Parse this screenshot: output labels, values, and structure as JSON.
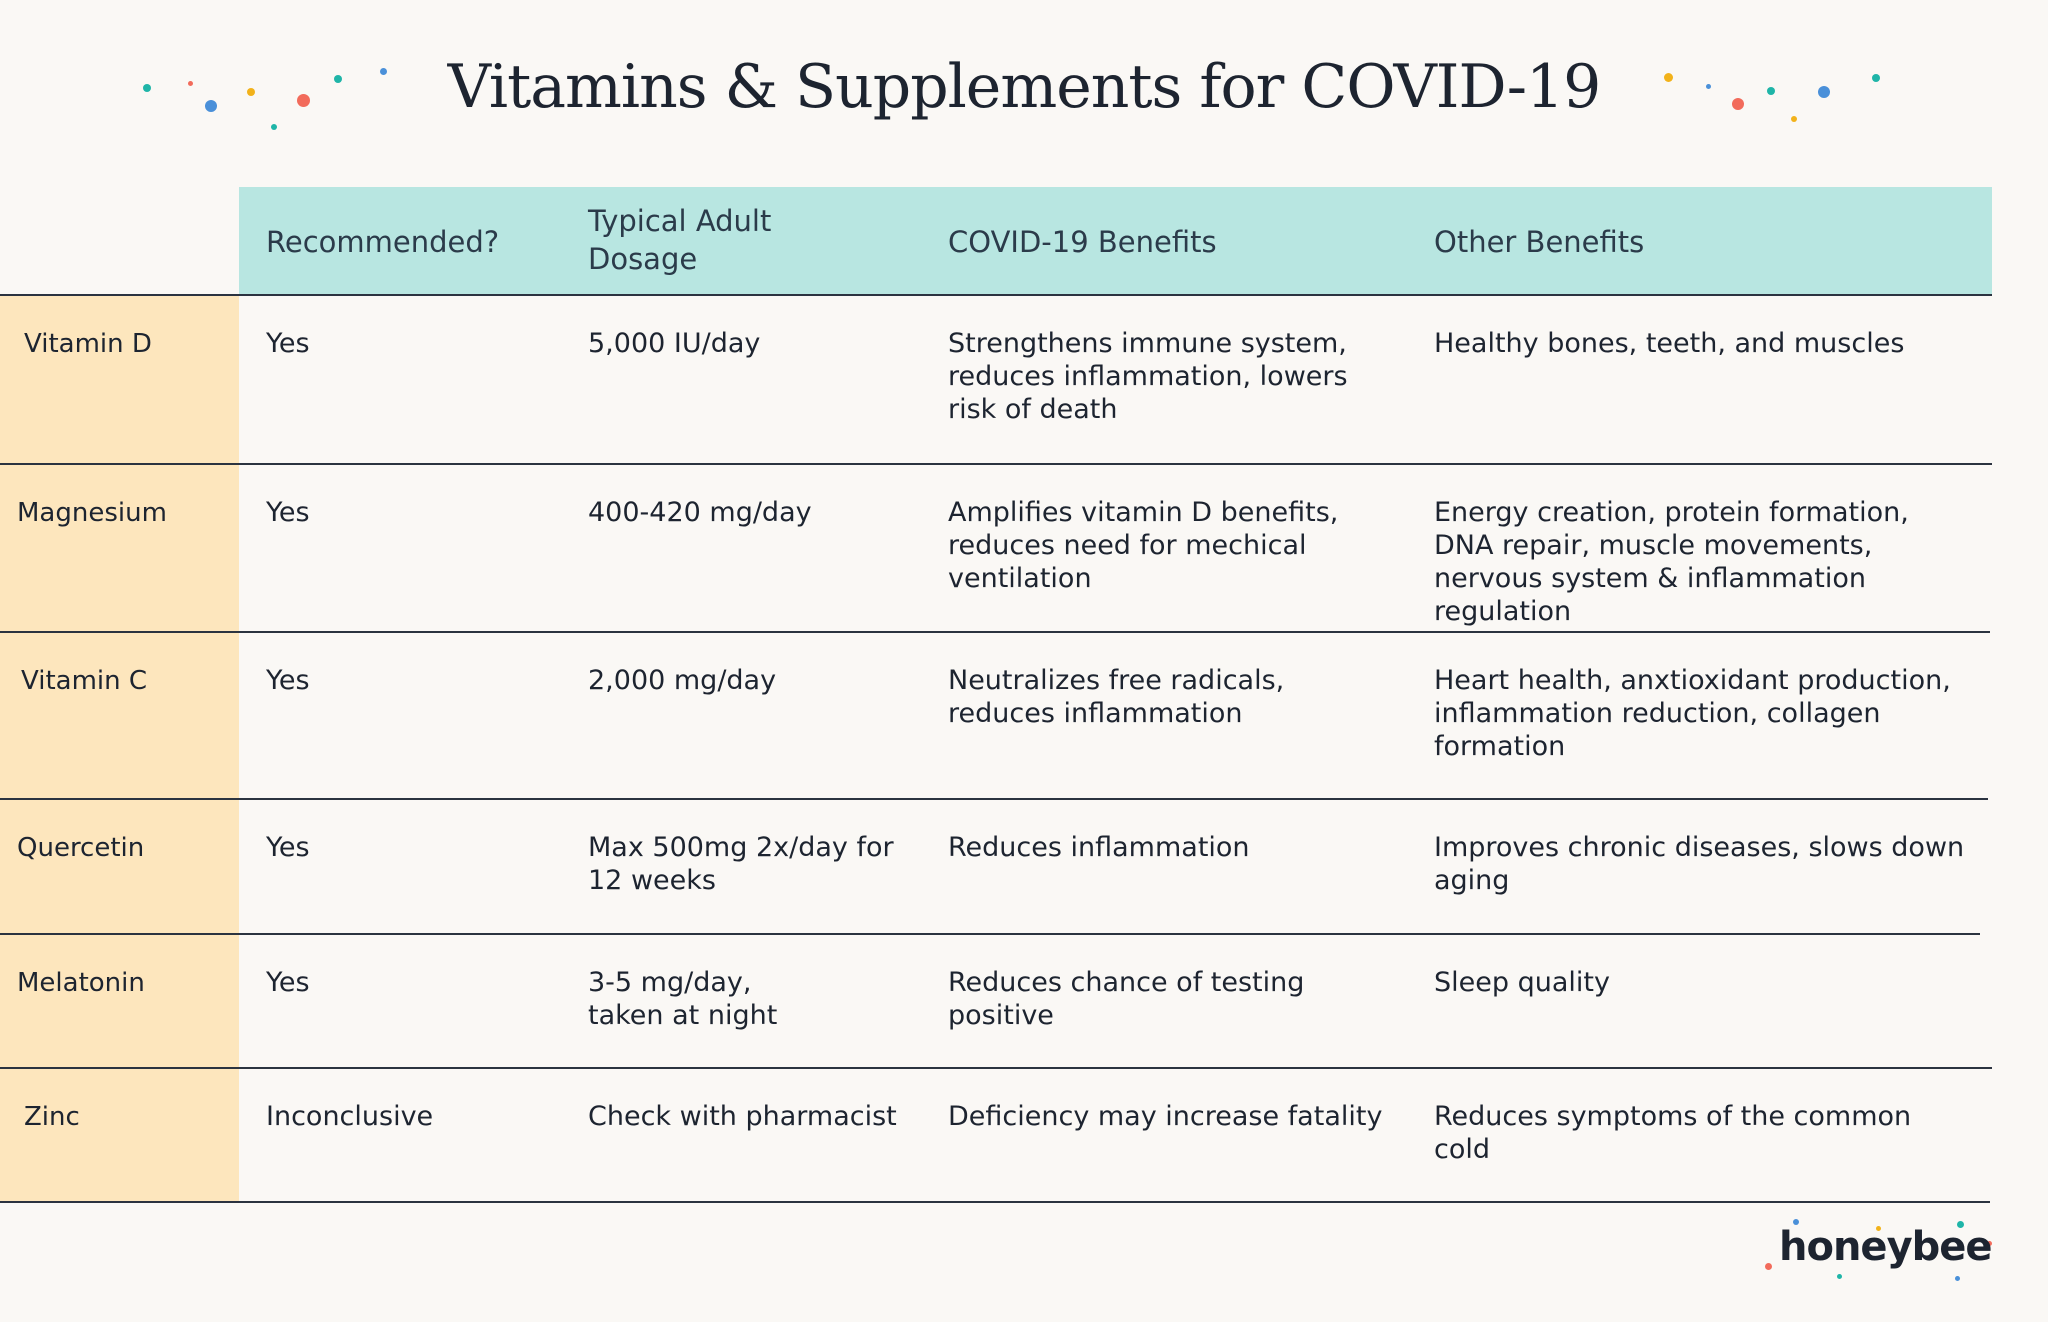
{
  "header": {
    "title": "Vitamins & Supplements for COVID-19"
  },
  "table": {
    "columns": [
      "Recommended?",
      "Typical Adult Dosage",
      "COVID-19 Benefits",
      "Other Benefits"
    ],
    "rows": [
      {
        "name": "Vitamin D",
        "cells": [
          "Yes",
          "5,000 IU/day",
          "Strengthens immune system, reduces inflammation, lowers risk of death",
          "Healthy bones, teeth, and muscles"
        ]
      },
      {
        "name": "Magnesium",
        "cells": [
          "Yes",
          "400-420 mg/day",
          "Amplifies vitamin D benefits, reduces need for mechical ventilation",
          "Energy creation, protein formation, DNA repair, muscle movements, nervous system & inflammation regulation"
        ]
      },
      {
        "name": "Vitamin C",
        "cells": [
          "Yes",
          "2,000 mg/day",
          "Neutralizes free radicals, reduces inflammation",
          "Heart health, anxtioxidant production, inflammation reduction, collagen formation"
        ]
      },
      {
        "name": "Quercetin",
        "cells": [
          "Yes",
          "Max 500mg 2x/day for 12 weeks",
          "Reduces inflammation",
          "Improves chronic diseases, slows down aging"
        ]
      },
      {
        "name": "Melatonin",
        "cells": [
          "Yes",
          "3-5 mg/day,\ntaken at night",
          "Reduces chance of testing positive",
          "Sleep quality"
        ]
      },
      {
        "name": "Zinc",
        "cells": [
          "Inconclusive",
          "Check with pharmacist",
          "Deficiency may increase fatality",
          "Reduces symptoms of the common cold"
        ]
      }
    ]
  },
  "brand": "honeybee"
}
